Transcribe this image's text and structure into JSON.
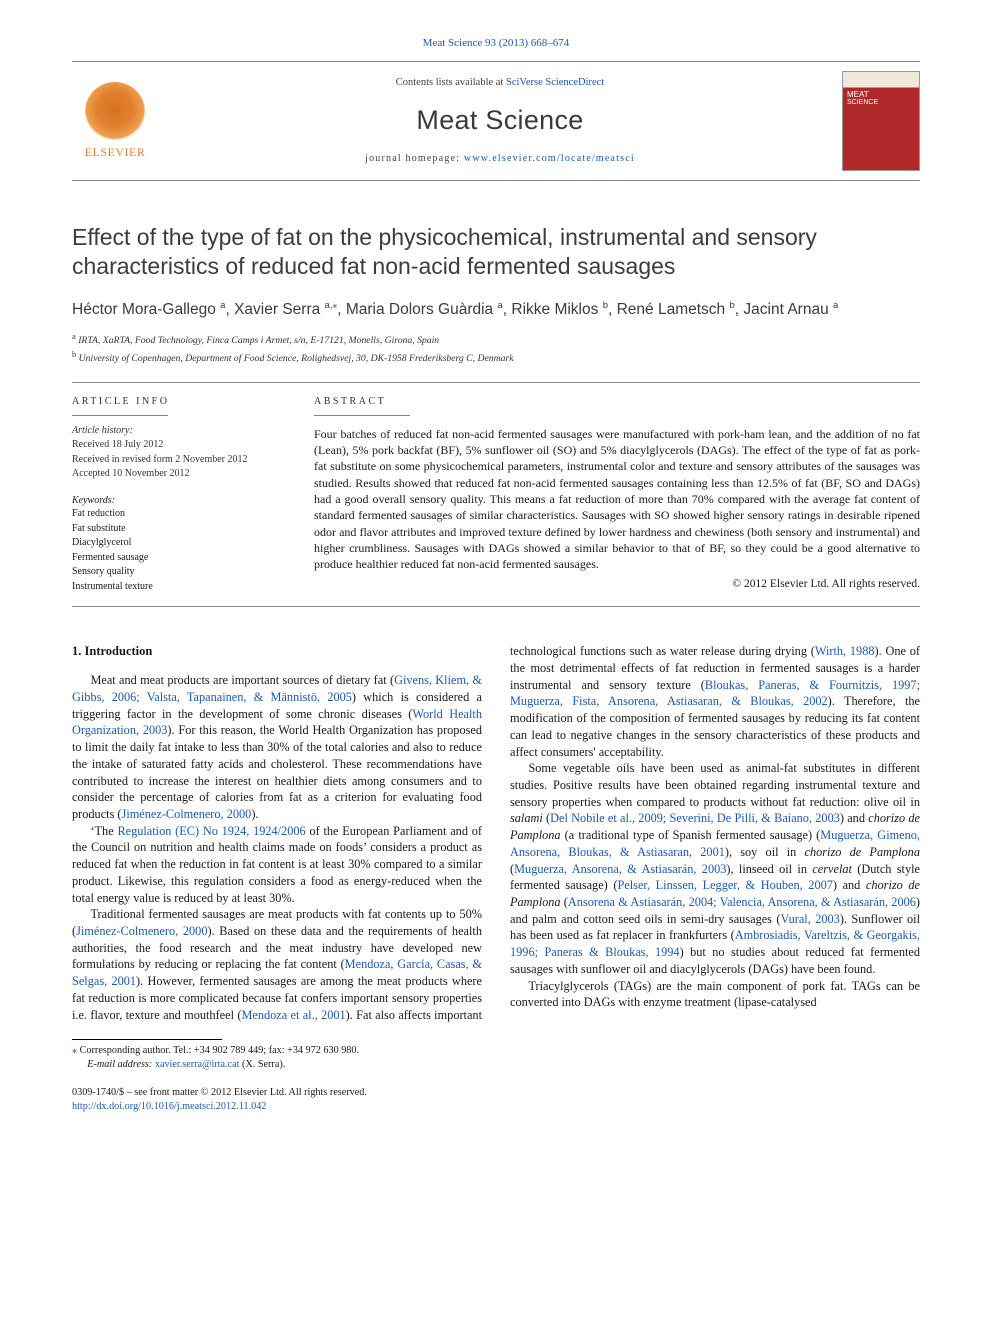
{
  "top_link": "Meat Science 93 (2013) 668–674",
  "header": {
    "contents_prefix": "Contents lists available at ",
    "contents_link": "SciVerse ScienceDirect",
    "journal_name": "Meat Science",
    "homepage_prefix": "journal homepage: ",
    "homepage_url": "www.elsevier.com/locate/meatsci",
    "elsevier_label": "ELSEVIER"
  },
  "title": "Effect of the type of fat on the physicochemical, instrumental and sensory characteristics of reduced fat non-acid fermented sausages",
  "authors_html": [
    {
      "name": "Héctor Mora-Gallego",
      "sup": "a"
    },
    {
      "name": "Xavier Serra",
      "sup": "a,",
      "star": true
    },
    {
      "name": "Maria Dolors Guàrdia",
      "sup": "a"
    },
    {
      "name": "Rikke Miklos",
      "sup": "b"
    },
    {
      "name": "René Lametsch",
      "sup": "b"
    },
    {
      "name": "Jacint Arnau",
      "sup": "a"
    }
  ],
  "affiliations": [
    {
      "sup": "a",
      "text": "IRTA, XaRTA, Food Technology, Finca Camps i Armet, s/n, E-17121, Monells, Girona, Spain"
    },
    {
      "sup": "b",
      "text": "University of Copenhagen, Department of Food Science, Rolighedsvej, 30, DK-1958 Frederiksberg C, Denmark"
    }
  ],
  "article_info": {
    "heading": "ARTICLE INFO",
    "history_label": "Article history:",
    "received": "Received 18 July 2012",
    "revised": "Received in revised form 2 November 2012",
    "accepted": "Accepted 10 November 2012",
    "keywords_label": "Keywords:",
    "keywords": [
      "Fat reduction",
      "Fat substitute",
      "Diacylglycerol",
      "Fermented sausage",
      "Sensory quality",
      "Instrumental texture"
    ]
  },
  "abstract": {
    "heading": "ABSTRACT",
    "text": "Four batches of reduced fat non-acid fermented sausages were manufactured with pork-ham lean, and the addition of no fat (Lean), 5% pork backfat (BF), 5% sunflower oil (SO) and 5% diacylglycerols (DAGs). The effect of the type of fat as pork-fat substitute on some physicochemical parameters, instrumental color and texture and sensory attributes of the sausages was studied. Results showed that reduced fat non-acid fermented sausages containing less than 12.5% of fat (BF, SO and DAGs) had a good overall sensory quality. This means a fat reduction of more than 70% compared with the average fat content of standard fermented sausages of similar characteristics. Sausages with SO showed higher sensory ratings in desirable ripened odor and flavor attributes and improved texture defined by lower hardness and chewiness (both sensory and instrumental) and higher crumbliness. Sausages with DAGs showed a similar behavior to that of BF, so they could be a good alternative to produce healthier reduced fat non-acid fermented sausages.",
    "copyright": "© 2012 Elsevier Ltd. All rights reserved."
  },
  "body": {
    "section1_heading": "1. Introduction",
    "p1a": "Meat and meat products are important sources of dietary fat (",
    "c1": "Givens, Kliem, & Gibbs, 2006; Valsta, Tapanainen, & Männistö, 2005",
    "p1b": ") which is considered a triggering factor in the development of some chronic diseases (",
    "c2": "World Health Organization, 2003",
    "p1c": "). For this reason, the World Health Organization has proposed to limit the daily fat intake to less than 30% of the total calories and also to reduce the intake of saturated fatty acids and cholesterol. These recommendations have contributed to increase the interest on healthier diets among consumers and to consider the percentage of calories from fat as a criterion for evaluating food products (",
    "c3": "Jiménez-Colmenero, 2000",
    "p1d": ").",
    "p2a": "‘The ",
    "c4": "Regulation (EC) No 1924, 1924/2006",
    "p2b": " of the European Parliament and of the Council on nutrition and health claims made on foods’ considers a product as reduced fat when the reduction in fat content is at least 30% compared to a similar product. Likewise, this regulation considers a food as energy-reduced when the total energy value is reduced by at least 30%.",
    "p3a": "Traditional fermented sausages are meat products with fat contents up to 50% (",
    "c5": "Jiménez-Colmenero, 2000",
    "p3b": "). Based on these data and the requirements of health authorities, the food research and the meat industry have developed new formulations by reducing or replacing the fat content (",
    "c6": "Mendoza, García, Casas, & Selgas, 2001",
    "p3c": "). However, fermented sausages are among the meat products where fat reduction ",
    "p4a": "is more complicated because fat confers important sensory properties i.e. flavor, texture and mouthfeel (",
    "c7": "Mendoza et al., 2001",
    "p4b": "). Fat also affects important technological functions such as water release during drying (",
    "c8": "Wirth, 1988",
    "p4c": "). One of the most detrimental effects of fat reduction in fermented sausages is a harder instrumental and sensory texture (",
    "c9": "Bloukas, Paneras, & Fournitzis, 1997; Muguerza, Fista, Ansorena, Astiasaran, & Bloukas, 2002",
    "p4d": "). Therefore, the modification of the composition of fermented sausages by reducing its fat content can lead to negative changes in the sensory characteristics of these products and affect consumers' acceptability.",
    "p5a": "Some vegetable oils have been used as animal-fat substitutes in different studies. Positive results have been obtained regarding instrumental texture and sensory properties when compared to products without fat reduction: olive oil in ",
    "i_salami": "salami",
    "p5a2": " (",
    "c10": "Del Nobile et al., 2009; Severini, De Pilli, & Baiano, 2003",
    "p5b": ") and ",
    "i_cdp1": "chorizo de Pamplona",
    "p5c": " (a traditional type of Spanish fermented sausage) (",
    "c11": "Muguerza, Gimeno, Ansorena, Bloukas, & Astiasaran, 2001",
    "p5d": "), soy oil in ",
    "i_cdp2": "chorizo de Pamplona",
    "p5e": " (",
    "c12": "Muguerza, Ansorena, & Astiasarán, 2003",
    "p5f": "), linseed oil in ",
    "i_cerv": "cervelat",
    "p5g": " (Dutch style fermented sausage) (",
    "c13": "Pelser, Linssen, Legger, & Houben, 2007",
    "p5h": ") and ",
    "i_cdp3": "chorizo de Pamplona",
    "p5i": " (",
    "c14": "Ansorena & Astiasarán, 2004; Valencia, Ansorena, & Astiasarán, 2006",
    "p5j": ") and palm and cotton seed oils in semi-dry sausages (",
    "c15": "Vural, 2003",
    "p5k": "). Sunflower oil has been used as fat replacer in frankfurters (",
    "c16": "Ambrosiadis, Vareltzis, & Georgakis, 1996; Paneras & Bloukas, 1994",
    "p5l": ") but no studies about reduced fat fermented sausages with sunflower oil and diacylglycerols (DAGs) have been found.",
    "p6": "Triacylglycerols (TAGs) are the main component of pork fat. TAGs can be converted into DAGs with enzyme treatment (lipase-catalysed"
  },
  "footnote": {
    "corr": "Corresponding author. Tel.: +34 902 789 449; fax: +34 972 630 980.",
    "email_label": "E-mail address:",
    "email": "xavier.serra@irta.cat",
    "email_who": "(X. Serra)."
  },
  "footer": {
    "line1": "0309-1740/$ – see front matter © 2012 Elsevier Ltd. All rights reserved.",
    "doi": "http://dx.doi.org/10.1016/j.meatsci.2012.11.042"
  },
  "colors": {
    "link": "#1b58b8",
    "text": "#1a1a1a",
    "rule": "#888888",
    "elsevier_orange": "#e08030",
    "cover_red": "#b02828"
  }
}
